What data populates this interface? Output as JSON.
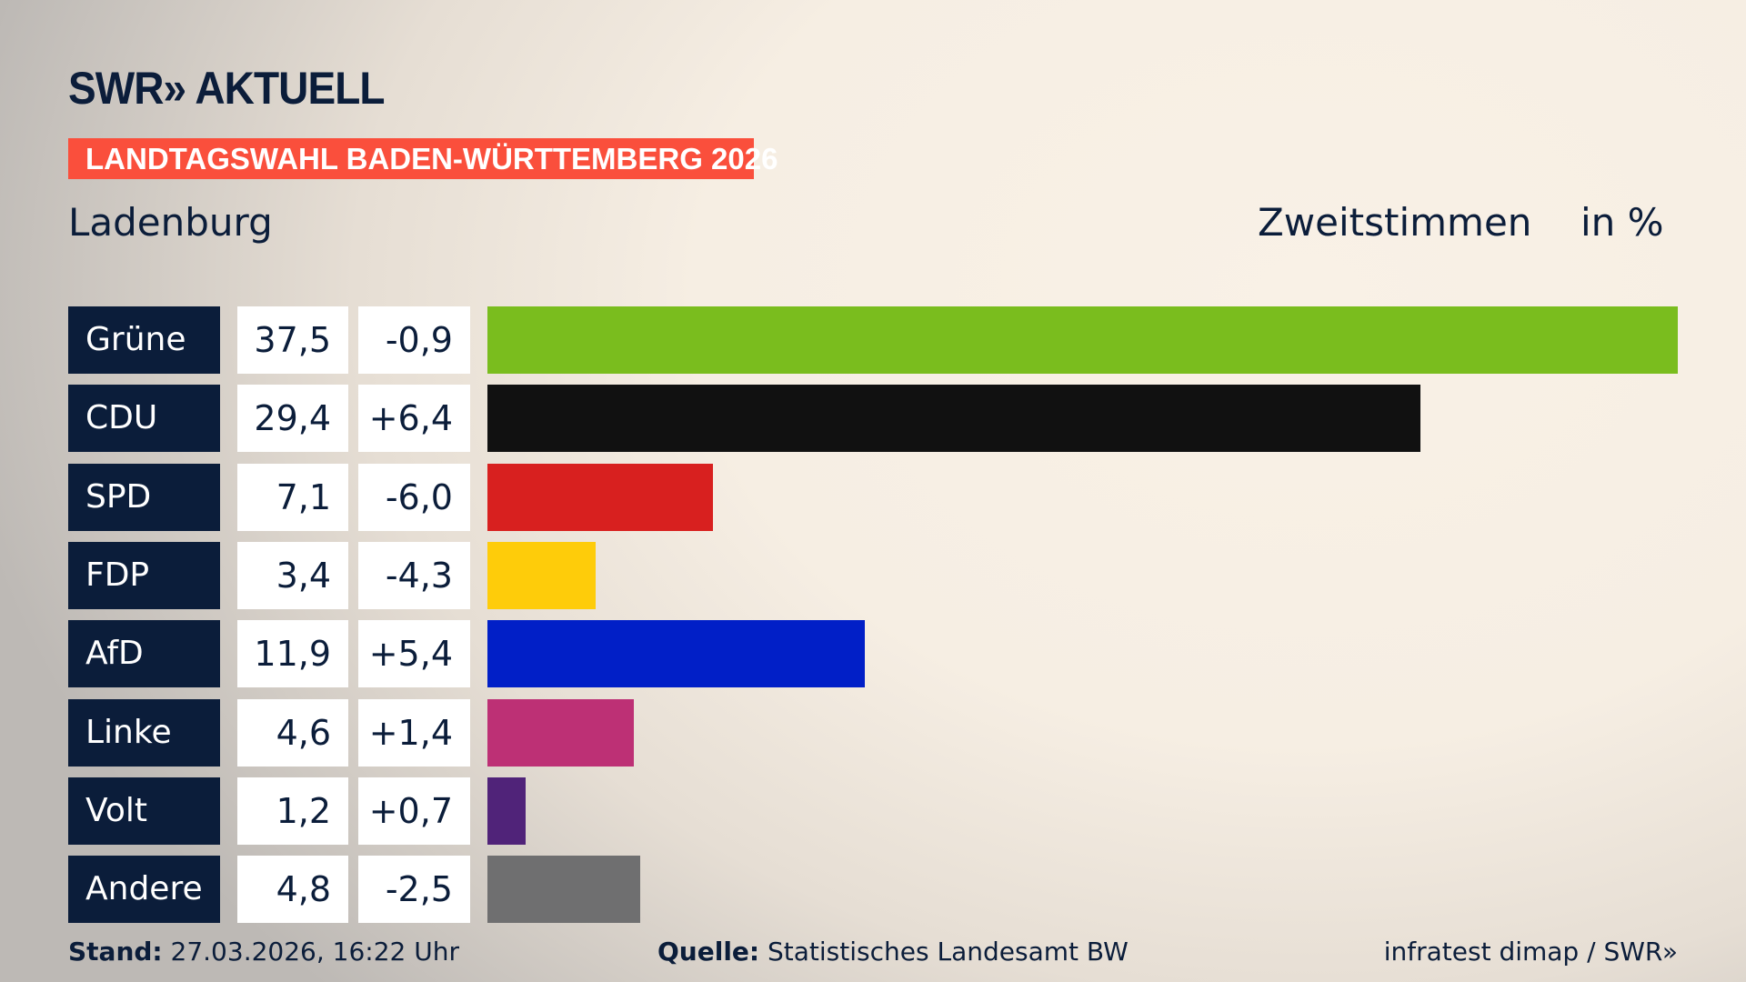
{
  "header": {
    "logo": "SWR» AKTUELL",
    "banner": "LANDTAGSWAHL BADEN-WÜRTTEMBERG 2026",
    "place": "Ladenburg",
    "measure": "Zweitstimmen",
    "unit": "in %"
  },
  "chart_data": {
    "type": "bar",
    "orientation": "horizontal",
    "categories": [
      "Grüne",
      "CDU",
      "SPD",
      "FDP",
      "AfD",
      "Linke",
      "Volt",
      "Andere"
    ],
    "values": [
      37.5,
      29.4,
      7.1,
      3.4,
      11.9,
      4.6,
      1.2,
      4.8
    ],
    "value_labels": [
      "37,5",
      "29,4",
      "7,1",
      "3,4",
      "11,9",
      "4,6",
      "1,2",
      "4,8"
    ],
    "changes": [
      -0.9,
      6.4,
      -6.0,
      -4.3,
      5.4,
      1.4,
      0.7,
      -2.5
    ],
    "change_labels": [
      "-0,9",
      "+6,4",
      "-6,0",
      "-4,3",
      "+5,4",
      "+1,4",
      "+0,7",
      "-2,5"
    ],
    "colors": [
      "#7abd1e",
      "#111111",
      "#d8201f",
      "#fecc0a",
      "#011fc7",
      "#bd3075",
      "#502379",
      "#6f6f70"
    ],
    "xlim": [
      0,
      37.5
    ],
    "grid": false
  },
  "footer": {
    "stand_label": "Stand:",
    "stand_value": "27.03.2026, 16:22 Uhr",
    "source_label": "Quelle:",
    "source_value": "Statistisches Landesamt BW",
    "credit": "infratest dimap / SWR»"
  }
}
